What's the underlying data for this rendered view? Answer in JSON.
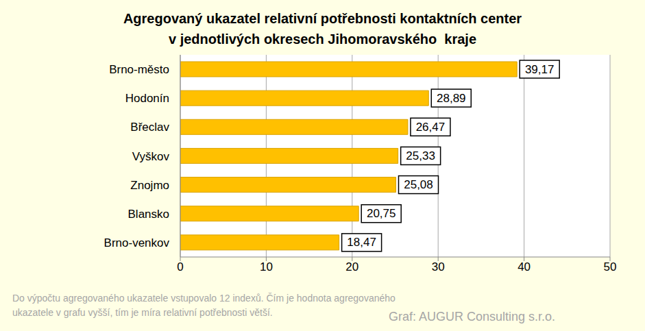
{
  "chart_data": {
    "type": "bar",
    "orientation": "horizontal",
    "title": "Agregovaný ukazatel relativní potřebnosti kontaktních center\nv jednotlivých okresech Jihomoravského  kraje",
    "categories": [
      "Brno-město",
      "Hodonín",
      "Břeclav",
      "Vyškov",
      "Znojmo",
      "Blansko",
      "Brno-venkov"
    ],
    "values": [
      39.17,
      28.89,
      26.47,
      25.33,
      25.08,
      20.75,
      18.47
    ],
    "value_labels": [
      "39,17",
      "28,89",
      "26,47",
      "25,33",
      "25,08",
      "20,75",
      "18,47"
    ],
    "color": "#FFC000",
    "xlim": [
      0,
      50
    ],
    "xticks": [
      0,
      10,
      20,
      30,
      40,
      50
    ],
    "grid": true,
    "data_labels": true,
    "annotations": [
      "Do výpočtu agregovaného ukazatele vstupovalo 12 indexů. Čím je hodnota agregovaného\nukazatele v grafu vyšší, tím je míra relativní potřebnosti větší.",
      "Graf: AUGUR Consulting s.r.o."
    ]
  }
}
